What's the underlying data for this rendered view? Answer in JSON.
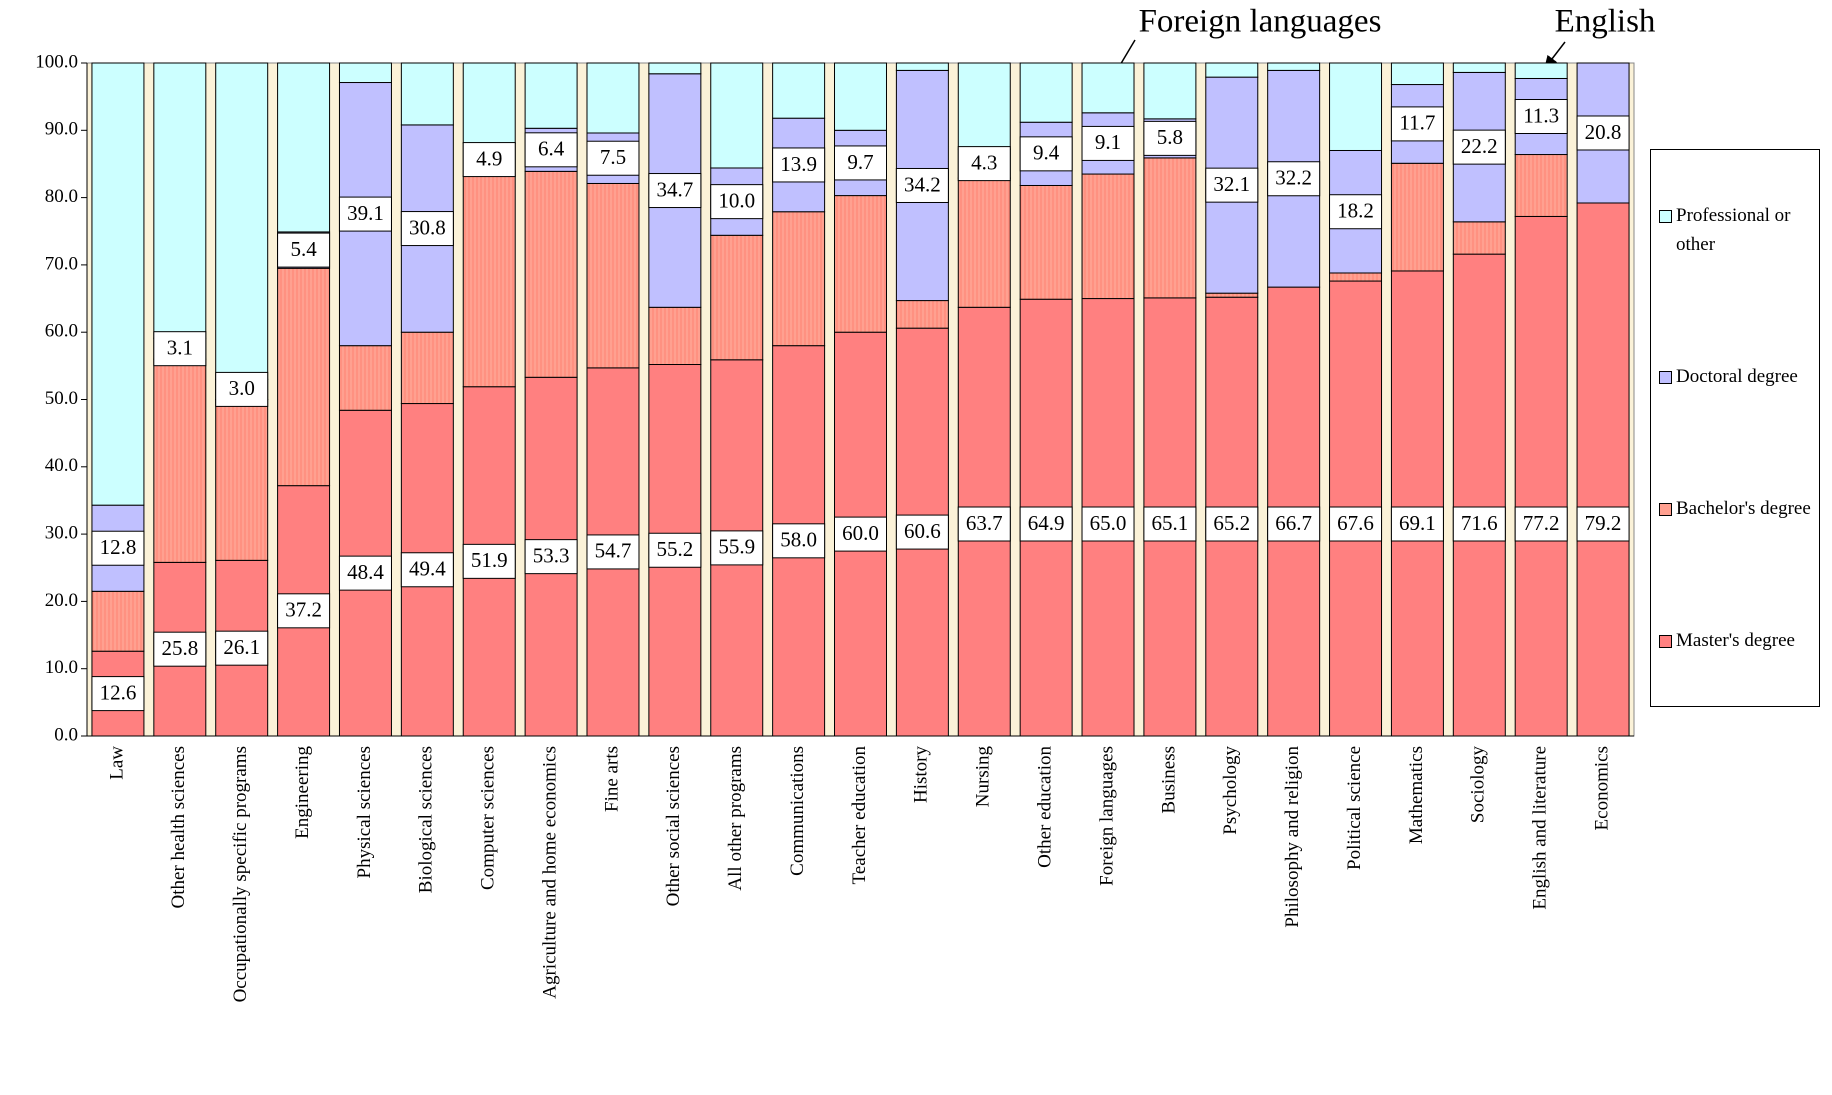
{
  "chart_data": {
    "type": "stacked-bar",
    "categories": [
      "Law",
      "Other health sciences",
      "Occupationally specific programs",
      "Engineering",
      "Physical sciences",
      "Biological sciences",
      "Computer sciences",
      "Agriculture and home economics",
      "Fine arts",
      "Other social sciences",
      "All other programs",
      "Communications",
      "Teacher education",
      "History",
      "Nursing",
      "Other education",
      "Foreign languages",
      "Business",
      "Psychology",
      "Philosophy and religion",
      "Political science",
      "Mathematics",
      "Sociology",
      "English and literature",
      "Economics"
    ],
    "series": [
      {
        "name": "Master's degree",
        "color": "#ff8080",
        "values": [
          12.6,
          25.8,
          26.1,
          37.2,
          48.4,
          49.4,
          51.9,
          53.3,
          54.7,
          55.2,
          55.9,
          58.0,
          60.0,
          60.6,
          63.7,
          64.9,
          65.0,
          65.1,
          65.2,
          66.7,
          67.6,
          69.1,
          71.6,
          77.2,
          79.2
        ],
        "value_labels": [
          "12.6",
          "25.8",
          "26.1",
          "37.2",
          "48.4",
          "49.4",
          "51.9",
          "53.3",
          "54.7",
          "55.2",
          "55.9",
          "58.0",
          "60.0",
          "60.6",
          "63.7",
          "64.9",
          "65.0",
          "65.1",
          "65.2",
          "66.7",
          "67.6",
          "69.1",
          "71.6",
          "77.2",
          "79.2"
        ]
      },
      {
        "name": "Bachelor's degree",
        "color": "#ffa090",
        "pattern": "vertical-lines",
        "values": [
          8.9,
          30.2,
          23.9,
          32.3,
          9.6,
          10.6,
          31.3,
          30.6,
          27.4,
          8.5,
          18.5,
          19.9,
          20.3,
          4.1,
          19.2,
          16.9,
          18.5,
          20.8,
          0.6,
          0.0,
          1.2,
          16.0,
          4.8,
          9.2,
          0.0
        ]
      },
      {
        "name": "Doctoral degree",
        "color": "#c0c0ff",
        "values": [
          12.8,
          3.1,
          3.0,
          5.4,
          39.1,
          30.8,
          4.9,
          6.4,
          7.5,
          34.7,
          10.0,
          13.9,
          9.7,
          34.2,
          4.3,
          9.4,
          9.1,
          5.8,
          32.1,
          32.2,
          18.2,
          11.7,
          22.2,
          11.3,
          20.8
        ],
        "value_labels": [
          "12.8",
          "3.1",
          "3.0",
          "5.4",
          "39.1",
          "30.8",
          "4.9",
          "6.4",
          "7.5",
          "34.7",
          "10.0",
          "13.9",
          "9.7",
          "34.2",
          "4.3",
          "9.4",
          "9.1",
          "5.8",
          "32.1",
          "32.2",
          "18.2",
          "11.7",
          "22.2",
          "11.3",
          "20.8"
        ]
      },
      {
        "name": "Professional or other",
        "color": "#ccffff",
        "values": [
          65.7,
          40.9,
          47.0,
          25.1,
          2.9,
          9.2,
          11.9,
          9.7,
          10.4,
          1.6,
          15.6,
          8.2,
          10.0,
          1.1,
          12.8,
          8.8,
          7.4,
          8.3,
          2.1,
          1.1,
          13.0,
          3.2,
          1.4,
          2.3,
          0.0
        ]
      }
    ],
    "ylim": [
      0,
      100
    ],
    "yticks": [
      {
        "value": 0,
        "label": "0.0"
      },
      {
        "value": 10,
        "label": "10.0"
      },
      {
        "value": 20,
        "label": "20.0"
      },
      {
        "value": 30,
        "label": "30.0"
      },
      {
        "value": 40,
        "label": "40.0"
      },
      {
        "value": 50,
        "label": "50.0"
      },
      {
        "value": 60,
        "label": "60.0"
      },
      {
        "value": 70,
        "label": "70.0"
      },
      {
        "value": 80,
        "label": "80.0"
      },
      {
        "value": 90,
        "label": "90.0"
      },
      {
        "value": {
          "value": 100,
          "label": "100.0"
        },
        "label": "100.0"
      }
    ],
    "annotations": [
      "Foreign languages",
      "English"
    ],
    "legend": "right"
  }
}
